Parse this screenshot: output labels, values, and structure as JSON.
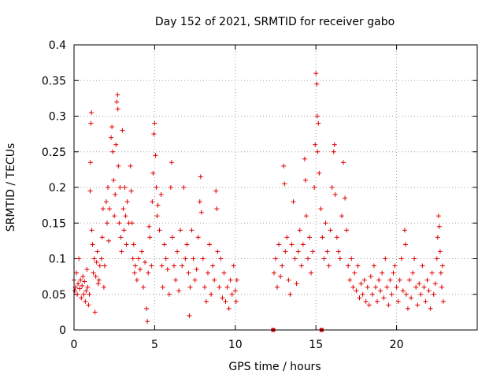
{
  "chart_data": {
    "type": "scatter",
    "title": "Day 152 of 2021, SRMTID for receiver gabo",
    "xlabel": "GPS time / hours",
    "ylabel": "SRMTID / TECUs",
    "xlim": [
      0,
      25
    ],
    "ylim": [
      0,
      0.4
    ],
    "x_ticks": [
      0,
      5,
      10,
      15,
      20
    ],
    "x_tick_labels": [
      "0",
      "5",
      "10",
      "15",
      "20"
    ],
    "y_ticks": [
      0,
      0.05,
      0.1,
      0.15,
      0.2,
      0.25,
      0.3,
      0.35,
      0.4
    ],
    "y_tick_labels": [
      "0",
      "0.05",
      "0.1",
      "0.15",
      "0.2",
      "0.25",
      "0.3",
      "0.35",
      "0.4"
    ],
    "grid": true,
    "marker": "plus",
    "color": "#e00000",
    "series": [
      {
        "name": "SRMTID",
        "points": [
          [
            0.0,
            0.07
          ],
          [
            0.05,
            0.055
          ],
          [
            0.1,
            0.06
          ],
          [
            0.15,
            0.08
          ],
          [
            0.2,
            0.05
          ],
          [
            0.25,
            0.065
          ],
          [
            0.3,
            0.1
          ],
          [
            0.35,
            0.058
          ],
          [
            0.4,
            0.07
          ],
          [
            0.45,
            0.045
          ],
          [
            0.5,
            0.062
          ],
          [
            0.55,
            0.075
          ],
          [
            0.6,
            0.05
          ],
          [
            0.65,
            0.068
          ],
          [
            0.7,
            0.04
          ],
          [
            0.75,
            0.055
          ],
          [
            0.8,
            0.085
          ],
          [
            0.85,
            0.06
          ],
          [
            0.9,
            0.035
          ],
          [
            0.95,
            0.05
          ],
          [
            1.0,
            0.195
          ],
          [
            1.02,
            0.235
          ],
          [
            1.05,
            0.29
          ],
          [
            1.08,
            0.305
          ],
          [
            1.1,
            0.14
          ],
          [
            1.15,
            0.12
          ],
          [
            1.2,
            0.08
          ],
          [
            1.25,
            0.1
          ],
          [
            1.3,
            0.025
          ],
          [
            1.35,
            0.075
          ],
          [
            1.4,
            0.095
          ],
          [
            1.45,
            0.11
          ],
          [
            1.5,
            0.065
          ],
          [
            1.55,
            0.07
          ],
          [
            1.6,
            0.09
          ],
          [
            1.7,
            0.1
          ],
          [
            1.75,
            0.13
          ],
          [
            1.8,
            0.17
          ],
          [
            1.85,
            0.06
          ],
          [
            1.9,
            0.09
          ],
          [
            2.0,
            0.18
          ],
          [
            2.05,
            0.15
          ],
          [
            2.1,
            0.2
          ],
          [
            2.15,
            0.125
          ],
          [
            2.2,
            0.17
          ],
          [
            2.3,
            0.27
          ],
          [
            2.35,
            0.285
          ],
          [
            2.4,
            0.25
          ],
          [
            2.45,
            0.21
          ],
          [
            2.5,
            0.16
          ],
          [
            2.55,
            0.19
          ],
          [
            2.6,
            0.26
          ],
          [
            2.65,
            0.32
          ],
          [
            2.7,
            0.33
          ],
          [
            2.72,
            0.31
          ],
          [
            2.75,
            0.23
          ],
          [
            2.8,
            0.15
          ],
          [
            2.85,
            0.2
          ],
          [
            2.9,
            0.13
          ],
          [
            2.95,
            0.11
          ],
          [
            3.0,
            0.28
          ],
          [
            3.05,
            0.17
          ],
          [
            3.1,
            0.14
          ],
          [
            3.15,
            0.2
          ],
          [
            3.2,
            0.16
          ],
          [
            3.25,
            0.12
          ],
          [
            3.3,
            0.18
          ],
          [
            3.4,
            0.15
          ],
          [
            3.5,
            0.23
          ],
          [
            3.55,
            0.195
          ],
          [
            3.6,
            0.15
          ],
          [
            3.65,
            0.1
          ],
          [
            3.7,
            0.12
          ],
          [
            3.75,
            0.08
          ],
          [
            3.8,
            0.09
          ],
          [
            3.9,
            0.07
          ],
          [
            4.0,
            0.1
          ],
          [
            4.1,
            0.085
          ],
          [
            4.2,
            0.11
          ],
          [
            4.3,
            0.06
          ],
          [
            4.4,
            0.095
          ],
          [
            4.5,
            0.03
          ],
          [
            4.55,
            0.012
          ],
          [
            4.6,
            0.08
          ],
          [
            4.65,
            0.145
          ],
          [
            4.7,
            0.13
          ],
          [
            4.8,
            0.09
          ],
          [
            4.85,
            0.18
          ],
          [
            4.9,
            0.22
          ],
          [
            4.95,
            0.275
          ],
          [
            5.0,
            0.29
          ],
          [
            5.05,
            0.245
          ],
          [
            5.1,
            0.2
          ],
          [
            5.15,
            0.16
          ],
          [
            5.2,
            0.175
          ],
          [
            5.3,
            0.14
          ],
          [
            5.4,
            0.19
          ],
          [
            5.45,
            0.09
          ],
          [
            5.5,
            0.06
          ],
          [
            5.6,
            0.12
          ],
          [
            5.7,
            0.1
          ],
          [
            5.8,
            0.085
          ],
          [
            5.9,
            0.05
          ],
          [
            6.0,
            0.2
          ],
          [
            6.05,
            0.235
          ],
          [
            6.1,
            0.13
          ],
          [
            6.2,
            0.09
          ],
          [
            6.3,
            0.07
          ],
          [
            6.4,
            0.11
          ],
          [
            6.5,
            0.055
          ],
          [
            6.6,
            0.14
          ],
          [
            6.7,
            0.09
          ],
          [
            6.8,
            0.2
          ],
          [
            6.9,
            0.1
          ],
          [
            7.0,
            0.12
          ],
          [
            7.1,
            0.08
          ],
          [
            7.15,
            0.02
          ],
          [
            7.2,
            0.06
          ],
          [
            7.3,
            0.14
          ],
          [
            7.4,
            0.1
          ],
          [
            7.5,
            0.07
          ],
          [
            7.6,
            0.085
          ],
          [
            7.7,
            0.13
          ],
          [
            7.8,
            0.18
          ],
          [
            7.85,
            0.215
          ],
          [
            7.9,
            0.165
          ],
          [
            8.0,
            0.1
          ],
          [
            8.1,
            0.06
          ],
          [
            8.2,
            0.04
          ],
          [
            8.3,
            0.08
          ],
          [
            8.4,
            0.12
          ],
          [
            8.5,
            0.05
          ],
          [
            8.6,
            0.09
          ],
          [
            8.7,
            0.07
          ],
          [
            8.8,
            0.195
          ],
          [
            8.85,
            0.17
          ],
          [
            8.9,
            0.11
          ],
          [
            9.0,
            0.06
          ],
          [
            9.1,
            0.1
          ],
          [
            9.2,
            0.045
          ],
          [
            9.3,
            0.08
          ],
          [
            9.4,
            0.04
          ],
          [
            9.5,
            0.06
          ],
          [
            9.6,
            0.03
          ],
          [
            9.7,
            0.07
          ],
          [
            9.8,
            0.05
          ],
          [
            9.9,
            0.09
          ],
          [
            10.0,
            0.055
          ],
          [
            10.05,
            0.04
          ],
          [
            10.1,
            0.07
          ],
          [
            12.4,
            0.08
          ],
          [
            12.5,
            0.1
          ],
          [
            12.6,
            0.06
          ],
          [
            12.7,
            0.12
          ],
          [
            12.8,
            0.075
          ],
          [
            12.9,
            0.09
          ],
          [
            13.0,
            0.23
          ],
          [
            13.05,
            0.205
          ],
          [
            13.1,
            0.11
          ],
          [
            13.2,
            0.13
          ],
          [
            13.3,
            0.07
          ],
          [
            13.4,
            0.05
          ],
          [
            13.5,
            0.12
          ],
          [
            13.6,
            0.18
          ],
          [
            13.7,
            0.1
          ],
          [
            13.8,
            0.065
          ],
          [
            13.9,
            0.11
          ],
          [
            14.0,
            0.14
          ],
          [
            14.1,
            0.09
          ],
          [
            14.2,
            0.12
          ],
          [
            14.3,
            0.24
          ],
          [
            14.35,
            0.21
          ],
          [
            14.4,
            0.16
          ],
          [
            14.5,
            0.1
          ],
          [
            14.6,
            0.13
          ],
          [
            14.7,
            0.08
          ],
          [
            14.8,
            0.11
          ],
          [
            14.9,
            0.2
          ],
          [
            14.95,
            0.26
          ],
          [
            15.0,
            0.36
          ],
          [
            15.05,
            0.345
          ],
          [
            15.08,
            0.3
          ],
          [
            15.1,
            0.25
          ],
          [
            15.15,
            0.29
          ],
          [
            15.2,
            0.22
          ],
          [
            15.3,
            0.17
          ],
          [
            15.4,
            0.13
          ],
          [
            15.5,
            0.1
          ],
          [
            15.6,
            0.15
          ],
          [
            15.7,
            0.11
          ],
          [
            15.8,
            0.09
          ],
          [
            15.9,
            0.14
          ],
          [
            16.0,
            0.2
          ],
          [
            16.1,
            0.25
          ],
          [
            16.15,
            0.26
          ],
          [
            16.2,
            0.19
          ],
          [
            16.3,
            0.13
          ],
          [
            16.4,
            0.11
          ],
          [
            16.5,
            0.1
          ],
          [
            16.6,
            0.16
          ],
          [
            16.7,
            0.235
          ],
          [
            16.8,
            0.185
          ],
          [
            16.9,
            0.14
          ],
          [
            17.0,
            0.09
          ],
          [
            17.1,
            0.07
          ],
          [
            17.2,
            0.1
          ],
          [
            17.3,
            0.06
          ],
          [
            17.4,
            0.08
          ],
          [
            17.5,
            0.055
          ],
          [
            17.6,
            0.09
          ],
          [
            17.7,
            0.045
          ],
          [
            17.8,
            0.065
          ],
          [
            17.9,
            0.05
          ],
          [
            18.0,
            0.07
          ],
          [
            18.1,
            0.04
          ],
          [
            18.2,
            0.06
          ],
          [
            18.3,
            0.035
          ],
          [
            18.4,
            0.075
          ],
          [
            18.5,
            0.05
          ],
          [
            18.6,
            0.09
          ],
          [
            18.7,
            0.06
          ],
          [
            18.8,
            0.04
          ],
          [
            18.9,
            0.07
          ],
          [
            19.0,
            0.055
          ],
          [
            19.1,
            0.08
          ],
          [
            19.2,
            0.045
          ],
          [
            19.3,
            0.1
          ],
          [
            19.4,
            0.06
          ],
          [
            19.5,
            0.035
          ],
          [
            19.6,
            0.07
          ],
          [
            19.7,
            0.05
          ],
          [
            19.8,
            0.08
          ],
          [
            19.9,
            0.09
          ],
          [
            20.0,
            0.06
          ],
          [
            20.1,
            0.04
          ],
          [
            20.2,
            0.07
          ],
          [
            20.3,
            0.1
          ],
          [
            20.4,
            0.055
          ],
          [
            20.5,
            0.14
          ],
          [
            20.55,
            0.12
          ],
          [
            20.6,
            0.05
          ],
          [
            20.7,
            0.03
          ],
          [
            20.8,
            0.07
          ],
          [
            20.9,
            0.045
          ],
          [
            21.0,
            0.08
          ],
          [
            21.1,
            0.1
          ],
          [
            21.2,
            0.06
          ],
          [
            21.3,
            0.035
          ],
          [
            21.4,
            0.065
          ],
          [
            21.5,
            0.05
          ],
          [
            21.6,
            0.09
          ],
          [
            21.7,
            0.06
          ],
          [
            21.8,
            0.04
          ],
          [
            21.9,
            0.07
          ],
          [
            22.0,
            0.055
          ],
          [
            22.1,
            0.03
          ],
          [
            22.2,
            0.08
          ],
          [
            22.3,
            0.05
          ],
          [
            22.4,
            0.065
          ],
          [
            22.5,
            0.1
          ],
          [
            22.55,
            0.13
          ],
          [
            22.6,
            0.16
          ],
          [
            22.65,
            0.145
          ],
          [
            22.7,
            0.11
          ],
          [
            22.75,
            0.08
          ],
          [
            22.8,
            0.06
          ],
          [
            22.85,
            0.09
          ],
          [
            22.9,
            0.04
          ]
        ]
      }
    ],
    "zero_markers": [
      12.35,
      15.35
    ]
  }
}
